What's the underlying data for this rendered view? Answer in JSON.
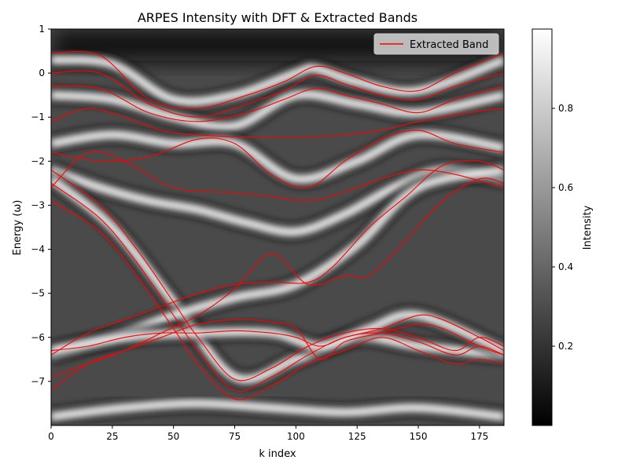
{
  "chart_data": {
    "type": "heatmap",
    "title": "ARPES Intensity with DFT & Extracted Bands",
    "xlabel": "k index",
    "ylabel": "Energy (ω)",
    "xlim": [
      0,
      185
    ],
    "ylim": [
      -8,
      1
    ],
    "x_ticks": [
      0,
      25,
      50,
      75,
      100,
      125,
      150,
      175
    ],
    "y_ticks": [
      1,
      0,
      -1,
      -2,
      -3,
      -4,
      -5,
      -6,
      -7
    ],
    "colorbar": {
      "label": "Intensity",
      "range": [
        0,
        1
      ],
      "ticks": [
        0.2,
        0.4,
        0.6,
        0.8
      ],
      "colormap": "gray"
    },
    "legend": {
      "placement": "top-right",
      "entries": [
        {
          "label": "Extracted Band",
          "color": "#ff0000"
        }
      ]
    },
    "band_color": "#ff0000",
    "bands": [
      {
        "x": [
          0,
          20,
          40,
          60,
          80,
          95,
          108,
          120,
          135,
          150,
          165,
          185
        ],
        "y": [
          0.45,
          0.4,
          -0.6,
          -0.8,
          -0.5,
          -0.2,
          0.15,
          0.0,
          -0.3,
          -0.4,
          0.0,
          0.45
        ]
      },
      {
        "x": [
          0,
          20,
          40,
          60,
          80,
          95,
          108,
          120,
          135,
          150,
          165,
          185
        ],
        "y": [
          0.0,
          0.0,
          -0.7,
          -1.0,
          -0.7,
          -0.4,
          -0.05,
          -0.25,
          -0.5,
          -0.6,
          -0.3,
          0.0
        ]
      },
      {
        "x": [
          0,
          20,
          40,
          60,
          80,
          95,
          108,
          120,
          135,
          150,
          165,
          185
        ],
        "y": [
          -0.3,
          -0.35,
          -0.9,
          -1.1,
          -0.9,
          -0.6,
          -0.35,
          -0.5,
          -0.7,
          -0.9,
          -0.6,
          -0.3
        ]
      },
      {
        "x": [
          0,
          15,
          30,
          45,
          60,
          75,
          90,
          105,
          120,
          135,
          150,
          170,
          185
        ],
        "y": [
          -1.1,
          -0.8,
          -1.0,
          -1.3,
          -1.4,
          -1.45,
          -1.45,
          -1.45,
          -1.4,
          -1.3,
          -1.1,
          -0.9,
          -0.8
        ]
      },
      {
        "x": [
          0,
          20,
          40,
          60,
          75,
          90,
          105,
          120,
          135,
          150,
          165,
          185
        ],
        "y": [
          -1.8,
          -2.0,
          -1.9,
          -1.5,
          -1.6,
          -2.3,
          -2.6,
          -2.0,
          -1.5,
          -1.3,
          -1.6,
          -1.8
        ]
      },
      {
        "x": [
          0,
          15,
          30,
          50,
          70,
          90,
          105,
          120,
          135,
          150,
          165,
          185
        ],
        "y": [
          -2.6,
          -1.8,
          -2.0,
          -2.6,
          -2.7,
          -2.8,
          -2.9,
          -2.7,
          -2.4,
          -2.2,
          -2.3,
          -2.6
        ]
      },
      {
        "x": [
          0,
          15,
          30,
          45,
          60,
          75,
          90,
          105,
          115,
          130,
          145,
          160,
          175,
          185
        ],
        "y": [
          -6.4,
          -5.9,
          -5.6,
          -5.3,
          -5.0,
          -4.8,
          -4.75,
          -4.75,
          -4.4,
          -3.5,
          -2.8,
          -2.1,
          -2.0,
          -2.2
        ]
      },
      {
        "x": [
          0,
          15,
          30,
          45,
          60,
          75,
          90,
          105,
          120,
          130,
          145,
          160,
          175,
          185
        ],
        "y": [
          -6.9,
          -6.6,
          -6.3,
          -5.9,
          -5.5,
          -4.9,
          -4.1,
          -4.8,
          -4.6,
          -4.6,
          -3.8,
          -2.9,
          -2.4,
          -2.5
        ]
      },
      {
        "x": [
          0,
          20,
          35,
          50,
          60,
          75,
          90,
          105,
          120,
          135,
          150,
          165,
          175,
          185
        ],
        "y": [
          -2.2,
          -3.0,
          -4.0,
          -5.2,
          -6.0,
          -6.95,
          -6.7,
          -6.2,
          -5.9,
          -5.8,
          -6.0,
          -6.3,
          -6.0,
          -6.2
        ]
      },
      {
        "x": [
          0,
          20,
          35,
          50,
          60,
          75,
          90,
          105,
          120,
          135,
          150,
          165,
          175,
          185
        ],
        "y": [
          -2.5,
          -3.3,
          -4.3,
          -5.5,
          -6.3,
          -7.2,
          -6.9,
          -6.4,
          -6.0,
          -5.9,
          -6.1,
          -6.4,
          -6.2,
          -6.4
        ]
      },
      {
        "x": [
          0,
          20,
          35,
          50,
          60,
          75,
          90,
          105,
          120,
          135,
          150,
          165,
          175,
          185
        ],
        "y": [
          -2.9,
          -3.6,
          -4.6,
          -5.8,
          -6.6,
          -7.4,
          -7.1,
          -6.6,
          -6.3,
          -6.0,
          -6.3,
          -6.6,
          -6.5,
          -6.6
        ]
      },
      {
        "x": [
          0,
          15,
          30,
          45,
          60,
          75,
          90,
          100,
          110,
          120,
          135,
          150,
          160,
          175,
          185
        ],
        "y": [
          -6.3,
          -6.2,
          -6.0,
          -5.9,
          -5.9,
          -5.85,
          -5.9,
          -6.0,
          -6.2,
          -6.0,
          -5.8,
          -5.5,
          -5.6,
          -6.0,
          -6.3
        ]
      },
      {
        "x": [
          0,
          15,
          30,
          45,
          60,
          75,
          90,
          100,
          110,
          120,
          135,
          150,
          160,
          175,
          185
        ],
        "y": [
          -7.2,
          -6.6,
          -6.3,
          -6.0,
          -5.7,
          -5.6,
          -5.65,
          -5.8,
          -6.5,
          -6.1,
          -5.9,
          -5.7,
          -5.8,
          -6.2,
          -6.4
        ]
      }
    ],
    "heat_bands": [
      {
        "x": [
          0,
          25,
          50,
          75,
          100,
          108,
          125,
          150,
          185
        ],
        "y": [
          0.3,
          0.2,
          -0.6,
          -0.5,
          0.0,
          0.1,
          -0.2,
          -0.4,
          0.3
        ]
      },
      {
        "x": [
          0,
          25,
          50,
          75,
          100,
          125,
          150,
          185
        ],
        "y": [
          -0.5,
          -0.6,
          -1.0,
          -1.2,
          -0.5,
          -0.7,
          -0.9,
          -0.5
        ]
      },
      {
        "x": [
          0,
          25,
          50,
          75,
          100,
          125,
          150,
          185
        ],
        "y": [
          -1.6,
          -1.4,
          -1.6,
          -1.6,
          -2.4,
          -2.0,
          -1.4,
          -1.7
        ]
      },
      {
        "x": [
          0,
          20,
          40,
          60,
          80,
          100,
          120,
          140,
          160,
          185
        ],
        "y": [
          -2.2,
          -2.6,
          -2.9,
          -3.1,
          -3.4,
          -3.6,
          -3.2,
          -2.6,
          -2.2,
          -2.4
        ]
      },
      {
        "x": [
          0,
          25,
          50,
          75,
          100,
          125,
          150,
          185
        ],
        "y": [
          -2.4,
          -3.5,
          -5.2,
          -6.9,
          -6.5,
          -6.0,
          -6.2,
          -6.4
        ]
      },
      {
        "x": [
          0,
          25,
          50,
          75,
          100,
          125,
          150,
          185
        ],
        "y": [
          -6.4,
          -6.0,
          -5.5,
          -5.1,
          -4.8,
          -3.9,
          -2.6,
          -2.2
        ]
      },
      {
        "x": [
          0,
          30,
          60,
          90,
          110,
          130,
          150,
          185
        ],
        "y": [
          -6.3,
          -6.0,
          -5.9,
          -5.9,
          -6.2,
          -5.8,
          -5.5,
          -6.3
        ]
      },
      {
        "x": [
          0,
          30,
          60,
          90,
          120,
          150,
          185
        ],
        "y": [
          -7.8,
          -7.6,
          -7.5,
          -7.6,
          -7.7,
          -7.6,
          -7.8
        ]
      }
    ]
  }
}
